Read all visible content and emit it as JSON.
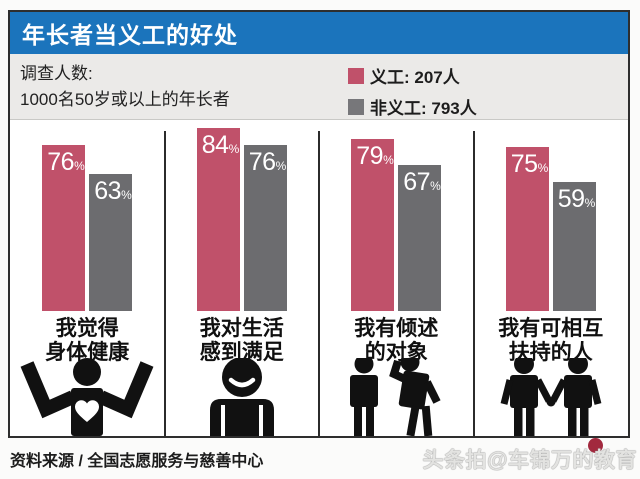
{
  "header": {
    "title": "年长者当义工的好处"
  },
  "survey": {
    "label": "调查人数:",
    "detail": "1000名50岁或以上的年长者"
  },
  "legend": {
    "items": [
      {
        "label": "义工: 207人",
        "color": "#c0516a"
      },
      {
        "label": "非义工: 793人",
        "color": "#77777a"
      }
    ]
  },
  "chart_data": {
    "type": "bar",
    "title": "年长者当义工的好处",
    "categories": [
      "我觉得身体健康",
      "我对生活感到满足",
      "我有倾述的对象",
      "我有可相互扶持的人"
    ],
    "categories_two_line": [
      [
        "我觉得",
        "身体健康"
      ],
      [
        "我对生活",
        "感到满足"
      ],
      [
        "我有倾述",
        "的对象"
      ],
      [
        "我有可相互",
        "扶持的人"
      ]
    ],
    "series": [
      {
        "name": "义工: 207人",
        "color": "#c0516a",
        "values": [
          76,
          84,
          79,
          75
        ]
      },
      {
        "name": "非义工: 793人",
        "color": "#6c6c6f",
        "values": [
          63,
          76,
          67,
          59
        ]
      }
    ],
    "unit": "%",
    "ylim": [
      0,
      100
    ],
    "grid": false,
    "legend_position": "top-right",
    "icons": [
      "cheering-person",
      "smiling-person",
      "talking-pair",
      "supporting-pair"
    ]
  },
  "footer": {
    "source": "资料来源 / 全国志愿服务与慈善中心",
    "watermark": "头条拍@车锦万的教育"
  },
  "colors": {
    "title_bar": "#1b74bc",
    "panel_bg": "#ebeae8",
    "volunteer_bar": "#c0516a",
    "non_volunteer_bar": "#6c6c6f",
    "frame_border": "#2e2e2e",
    "watermark_badge": "#a2293e"
  }
}
